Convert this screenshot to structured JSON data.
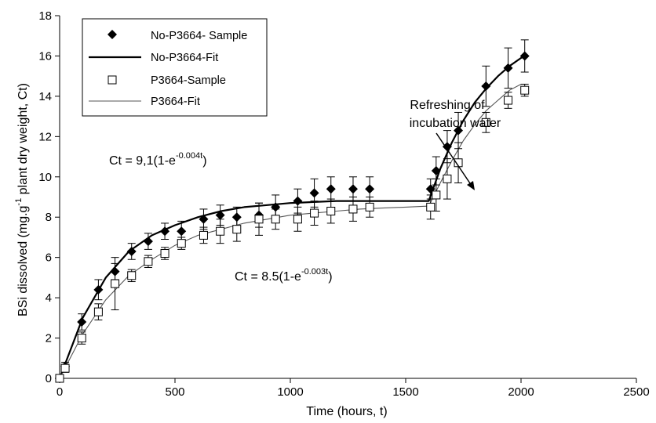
{
  "chart_data": {
    "type": "scatter",
    "xlabel": "Time (hours, t)",
    "ylabel_parts": {
      "before": "BSi dissolved (mg.g",
      "sup": "-1",
      "after": " plant dry weight, Ct)"
    },
    "xlim": [
      0,
      2500
    ],
    "ylim": [
      0,
      18
    ],
    "xticks": [
      0,
      500,
      1000,
      1500,
      2000,
      2500
    ],
    "yticks": [
      0,
      2,
      4,
      6,
      8,
      10,
      12,
      14,
      16,
      18
    ],
    "grid": false,
    "legend_position": "top-left",
    "legend": [
      {
        "label": "No-P3664- Sample",
        "marker": "filled-diamond"
      },
      {
        "label": "No-P3664-Fit",
        "line": "thick-black"
      },
      {
        "label": "P3664-Sample",
        "marker": "open-square"
      },
      {
        "label": "P3664-Fit",
        "line": "thin-grey"
      }
    ],
    "annotations": {
      "arrow_text_line1": "Refreshing of",
      "arrow_text_line2": "incubation water",
      "eq1_base": "Ct = 9,1(1-e",
      "eq1_sup": "-0.004t",
      "eq1_end": ")",
      "eq2_base": "Ct = 8.5(1-e",
      "eq2_sup": "-0.003t",
      "eq2_end": ")"
    },
    "series": [
      {
        "name": "No-P3664- Sample",
        "marker": "filled-diamond",
        "color": "#000000",
        "points": [
          [
            0,
            0
          ],
          [
            24,
            0.6
          ],
          [
            96,
            2.8
          ],
          [
            168,
            4.4
          ],
          [
            240,
            5.3
          ],
          [
            312,
            6.3
          ],
          [
            384,
            6.8
          ],
          [
            456,
            7.3
          ],
          [
            528,
            7.3
          ],
          [
            624,
            7.9
          ],
          [
            696,
            8.1
          ],
          [
            768,
            8.0
          ],
          [
            864,
            8.1
          ],
          [
            936,
            8.5
          ],
          [
            1032,
            8.8
          ],
          [
            1104,
            9.2
          ],
          [
            1176,
            9.4
          ],
          [
            1272,
            9.4
          ],
          [
            1344,
            9.4
          ],
          [
            1608,
            9.4
          ],
          [
            1632,
            10.3
          ],
          [
            1680,
            11.5
          ],
          [
            1728,
            12.3
          ],
          [
            1848,
            14.5
          ],
          [
            1944,
            15.4
          ],
          [
            2016,
            16.0
          ]
        ],
        "errors": [
          0,
          0.2,
          0.4,
          0.5,
          0.4,
          0.4,
          0.4,
          0.4,
          0.5,
          0.5,
          0.5,
          0.5,
          0.6,
          0.6,
          0.6,
          0.7,
          0.6,
          0.6,
          0.6,
          0.5,
          0.7,
          0.8,
          0.9,
          1.0,
          1.0,
          0.8
        ]
      },
      {
        "name": "P3664-Sample",
        "marker": "open-square",
        "color": "#000000",
        "points": [
          [
            0,
            0
          ],
          [
            24,
            0.5
          ],
          [
            96,
            2.0
          ],
          [
            168,
            3.3
          ],
          [
            240,
            4.7
          ],
          [
            312,
            5.1
          ],
          [
            384,
            5.8
          ],
          [
            456,
            6.2
          ],
          [
            528,
            6.7
          ],
          [
            624,
            7.1
          ],
          [
            696,
            7.3
          ],
          [
            768,
            7.4
          ],
          [
            864,
            7.9
          ],
          [
            936,
            7.9
          ],
          [
            1032,
            7.9
          ],
          [
            1104,
            8.2
          ],
          [
            1176,
            8.3
          ],
          [
            1272,
            8.4
          ],
          [
            1344,
            8.5
          ],
          [
            1608,
            8.5
          ],
          [
            1632,
            9.1
          ],
          [
            1680,
            9.9
          ],
          [
            1728,
            10.7
          ],
          [
            1848,
            12.7
          ],
          [
            1944,
            13.8
          ],
          [
            2016,
            14.3
          ]
        ],
        "errors": [
          0,
          0.2,
          0.3,
          0.4,
          1.3,
          0.3,
          0.3,
          0.3,
          0.3,
          0.4,
          0.6,
          0.6,
          0.8,
          0.5,
          0.6,
          0.6,
          0.6,
          0.6,
          0.5,
          0.6,
          0.8,
          1.0,
          1.0,
          0.5,
          0.4,
          0.3
        ]
      },
      {
        "name": "No-P3664-Fit",
        "line": "thick-black",
        "color": "#000000",
        "x": [
          0,
          100,
          200,
          300,
          400,
          500,
          600,
          700,
          800,
          900,
          1000,
          1100,
          1200,
          1300,
          1400,
          1500,
          1600,
          1650,
          1700,
          1750,
          1800,
          1850,
          1900,
          1950,
          2000,
          2016
        ],
        "y": [
          0,
          3.0,
          5.0,
          6.3,
          7.1,
          7.6,
          8.0,
          8.3,
          8.5,
          8.6,
          8.7,
          8.75,
          8.8,
          8.8,
          8.8,
          8.8,
          8.8,
          10.4,
          11.7,
          12.8,
          13.7,
          14.4,
          15.0,
          15.5,
          15.9,
          16.0
        ]
      },
      {
        "name": "P3664-Fit",
        "line": "thin-grey",
        "color": "#555555",
        "x": [
          0,
          100,
          200,
          300,
          400,
          500,
          600,
          700,
          800,
          900,
          1000,
          1100,
          1200,
          1300,
          1400,
          1500,
          1600,
          1650,
          1700,
          1750,
          1800,
          1850,
          1900,
          1950,
          2000,
          2016
        ],
        "y": [
          0,
          2.2,
          3.9,
          5.1,
          5.9,
          6.6,
          7.1,
          7.4,
          7.7,
          7.9,
          8.1,
          8.2,
          8.3,
          8.4,
          8.45,
          8.5,
          8.55,
          9.7,
          10.8,
          11.8,
          12.6,
          13.3,
          13.8,
          14.3,
          14.6,
          14.6
        ]
      }
    ]
  }
}
